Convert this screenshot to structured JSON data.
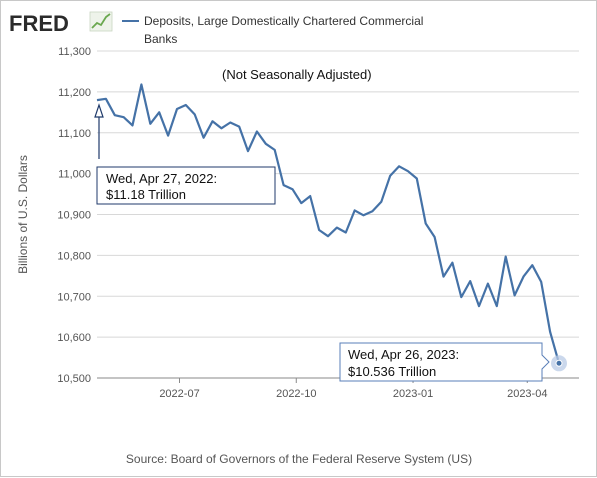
{
  "brand": {
    "logo_text": "FRED",
    "logo_icon": "fred-sparkline-icon"
  },
  "legend": {
    "line1": "Deposits, Large Domestically Chartered Commercial",
    "line2": "Banks"
  },
  "annotations": {
    "note": "(Not Seasonally Adjusted)",
    "start_line1": "Wed, Apr 27, 2022:",
    "start_line2": "$11.18 Trillion",
    "end_line1": "Wed, Apr 26, 2023:",
    "end_line2": "$10.536 Trillion"
  },
  "source": "Source: Board of Governors of the Federal Reserve System (US)",
  "colors": {
    "series": "#4572a7",
    "grid": "#d8d8d8",
    "axis": "#8a8a8a"
  },
  "chart_data": {
    "type": "line",
    "ylabel": "Billions of U.S. Dollars",
    "ylim": [
      10500,
      11300
    ],
    "yticks": [
      10500,
      10600,
      10700,
      10800,
      10900,
      11000,
      11100,
      11200,
      11300
    ],
    "ytick_labels": [
      "10,500",
      "10,600",
      "10,700",
      "10,800",
      "10,900",
      "11,000",
      "11,100",
      "11,200",
      "11,300"
    ],
    "xlim": [
      "2022-04-27",
      "2023-04-26"
    ],
    "xticks": [
      "2022-07-01",
      "2022-10-01",
      "2023-01-01",
      "2023-04-01"
    ],
    "xtick_labels": [
      "2022-07",
      "2022-10",
      "2023-01",
      "2023-04"
    ],
    "grid": true,
    "series": [
      {
        "name": "Deposits, Large Domestically Chartered Commercial Banks",
        "x": [
          "2022-04-27",
          "2022-05-04",
          "2022-05-11",
          "2022-05-18",
          "2022-05-25",
          "2022-06-01",
          "2022-06-08",
          "2022-06-15",
          "2022-06-22",
          "2022-06-29",
          "2022-07-06",
          "2022-07-13",
          "2022-07-20",
          "2022-07-27",
          "2022-08-03",
          "2022-08-10",
          "2022-08-17",
          "2022-08-24",
          "2022-08-31",
          "2022-09-07",
          "2022-09-14",
          "2022-09-21",
          "2022-09-28",
          "2022-10-05",
          "2022-10-12",
          "2022-10-19",
          "2022-10-26",
          "2022-11-02",
          "2022-11-09",
          "2022-11-16",
          "2022-11-23",
          "2022-11-30",
          "2022-12-07",
          "2022-12-14",
          "2022-12-21",
          "2022-12-28",
          "2023-01-04",
          "2023-01-11",
          "2023-01-18",
          "2023-01-25",
          "2023-02-01",
          "2023-02-08",
          "2023-02-15",
          "2023-02-22",
          "2023-03-01",
          "2023-03-08",
          "2023-03-15",
          "2023-03-22",
          "2023-03-29",
          "2023-04-05",
          "2023-04-12",
          "2023-04-19",
          "2023-04-26"
        ],
        "y": [
          11180,
          11183,
          11143,
          11138,
          11118,
          11218,
          11122,
          11150,
          11093,
          11158,
          11168,
          11145,
          11088,
          11128,
          11111,
          11125,
          11115,
          11055,
          11103,
          11073,
          11058,
          10972,
          10962,
          10928,
          10945,
          10862,
          10847,
          10868,
          10856,
          10910,
          10898,
          10908,
          10931,
          10995,
          11018,
          11006,
          10988,
          10878,
          10845,
          10748,
          10782,
          10698,
          10737,
          10676,
          10731,
          10676,
          10797,
          10702,
          10748,
          10776,
          10735,
          10613,
          10536
        ]
      }
    ]
  }
}
